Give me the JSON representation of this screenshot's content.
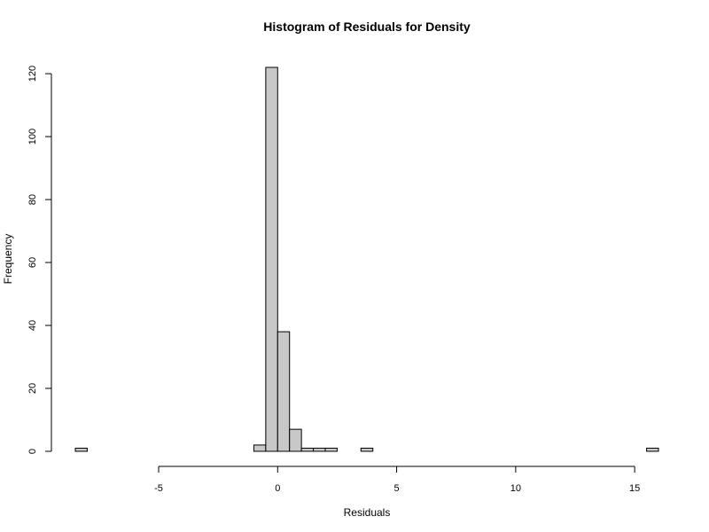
{
  "chart_data": {
    "type": "bar",
    "title": "Histogram of Residuals for Density",
    "xlabel": "Residuals",
    "ylabel": "Frequency",
    "xlim": [
      -8.5,
      16
    ],
    "ylim": [
      0,
      122
    ],
    "bin_width": 0.5,
    "bar_fill": "#c8c8c8",
    "bar_stroke": "#000000",
    "grid": false,
    "x_ticks": [
      -5,
      0,
      5,
      10,
      15
    ],
    "y_ticks": [
      0,
      20,
      40,
      60,
      80,
      100,
      120
    ],
    "x_tick_labels": [
      "-5",
      "0",
      "5",
      "10",
      "15"
    ],
    "y_tick_labels": [
      "0",
      "20",
      "40",
      "60",
      "80",
      "100",
      "120"
    ],
    "bins": [
      {
        "start": -8.5,
        "end": -8.0,
        "count": 1
      },
      {
        "start": -1.0,
        "end": -0.5,
        "count": 2
      },
      {
        "start": -0.5,
        "end": 0.0,
        "count": 122
      },
      {
        "start": 0.0,
        "end": 0.5,
        "count": 38
      },
      {
        "start": 0.5,
        "end": 1.0,
        "count": 7
      },
      {
        "start": 1.0,
        "end": 1.5,
        "count": 1
      },
      {
        "start": 1.5,
        "end": 2.0,
        "count": 1
      },
      {
        "start": 2.0,
        "end": 2.5,
        "count": 1
      },
      {
        "start": 3.5,
        "end": 4.0,
        "count": 1
      },
      {
        "start": 15.5,
        "end": 16.0,
        "count": 1
      }
    ]
  }
}
